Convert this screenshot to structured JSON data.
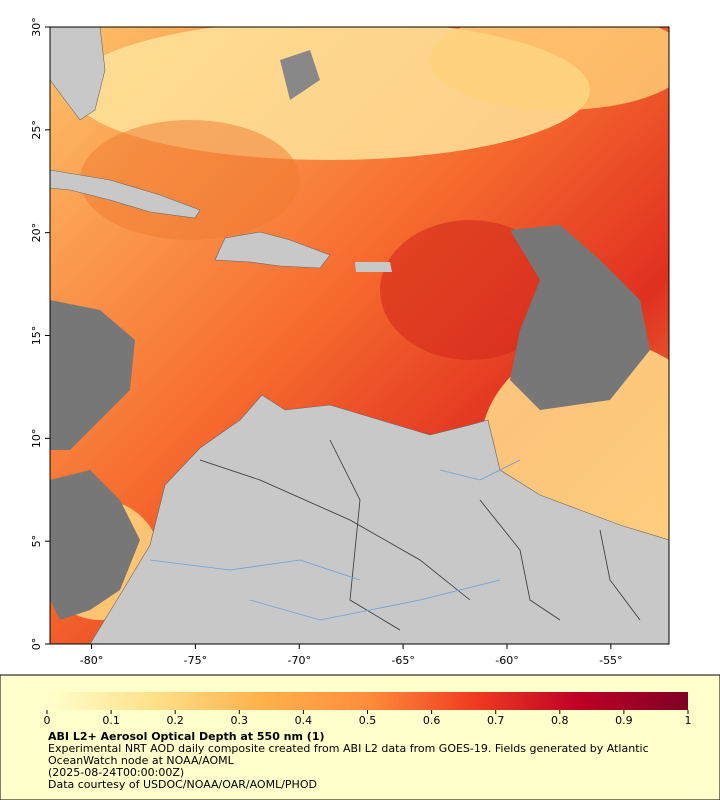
{
  "map": {
    "xlim": [
      -82,
      -52.2
    ],
    "ylim": [
      0,
      30
    ],
    "xticks": [
      {
        "value": -80,
        "label": "-80°"
      },
      {
        "value": -75,
        "label": "-75°"
      },
      {
        "value": -70,
        "label": "-70°"
      },
      {
        "value": -65,
        "label": "-65°"
      },
      {
        "value": -60,
        "label": "-60°"
      },
      {
        "value": -55,
        "label": "-55°"
      }
    ],
    "yticks": [
      {
        "value": 0,
        "label": "0°"
      },
      {
        "value": 5,
        "label": "5°"
      },
      {
        "value": 10,
        "label": "10°"
      },
      {
        "value": 15,
        "label": "15°"
      },
      {
        "value": 20,
        "label": "20°"
      },
      {
        "value": 25,
        "label": "25°"
      },
      {
        "value": 30,
        "label": "30°"
      }
    ]
  },
  "colorbar": {
    "range": [
      0,
      1
    ],
    "ticks": [
      0,
      0.1,
      0.2,
      0.3,
      0.4,
      0.5,
      0.6,
      0.7,
      0.8,
      0.9,
      1
    ],
    "colors": [
      "#ffffcc",
      "#ffe08a",
      "#feb24c",
      "#fd8d3c",
      "#f03b20",
      "#bd0026",
      "#800026"
    ]
  },
  "legend": {
    "title": "ABI L2+ Aerosol Optical Depth at 550 nm (1)",
    "description": "Experimental NRT AOD daily composite created from ABI L2 data from GOES-19. Fields generated by Atlantic OceanWatch node at NOAA/AOML",
    "time": "(2025-08-24T00:00:00Z)",
    "credit": "Data courtesy of USDOC/NOAA/OAR/AOML/PHOD"
  }
}
